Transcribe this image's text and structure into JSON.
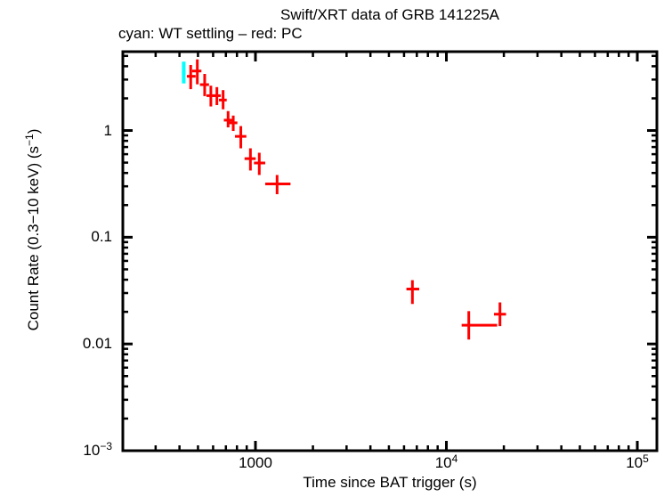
{
  "header": {
    "title": "Swift/XRT data of GRB 141225A",
    "subtitle": "cyan: WT settling – red: PC"
  },
  "chart_data": {
    "type": "scatter",
    "title": "Swift/XRT data of GRB 141225A",
    "xlabel": "Time since BAT trigger (s)",
    "ylabel": {
      "pre": "Count Rate (0.3−10 keV) (s",
      "sup": "−1",
      "post": ")"
    },
    "x_scale": "log",
    "y_scale": "log",
    "xlim": [
      202,
      126600
    ],
    "ylim": [
      0.001,
      5.48
    ],
    "grid": "off",
    "legend": "in-subtitle",
    "x_major_ticks": [
      {
        "value": 1000,
        "base": "1000",
        "sup": ""
      },
      {
        "value": 10000,
        "base": "10",
        "sup": "4"
      },
      {
        "value": 100000,
        "base": "10",
        "sup": "5"
      }
    ],
    "y_major_ticks": [
      {
        "value": 1,
        "base": "1",
        "sup": ""
      },
      {
        "value": 0.1,
        "base": "0.1",
        "sup": ""
      },
      {
        "value": 0.01,
        "base": "0.01",
        "sup": ""
      },
      {
        "value": 0.001,
        "base": "10",
        "sup": "−3"
      }
    ],
    "series": [
      {
        "name": "WT settling",
        "color": "#00ffff",
        "stroke": 4,
        "points": [
          {
            "t": 421,
            "t_lo": 412,
            "t_hi": 430,
            "r": 3.5,
            "r_lo": 2.76,
            "r_hi": 4.42
          }
        ]
      },
      {
        "name": "PC",
        "color": "#ff0000",
        "stroke": 3,
        "points": [
          {
            "t": 458,
            "t_lo": 437,
            "t_hi": 486,
            "r": 3.22,
            "r_lo": 2.44,
            "r_hi": 4.11
          },
          {
            "t": 496,
            "t_lo": 466,
            "t_hi": 521,
            "r": 3.61,
            "r_lo": 2.71,
            "r_hi": 4.64
          },
          {
            "t": 542,
            "t_lo": 512,
            "t_hi": 571,
            "r": 2.69,
            "r_lo": 2.1,
            "r_hi": 3.39
          },
          {
            "t": 584,
            "t_lo": 554,
            "t_hi": 612,
            "r": 2.12,
            "r_lo": 1.68,
            "r_hi": 2.63
          },
          {
            "t": 628,
            "t_lo": 600,
            "t_hi": 658,
            "r": 2.12,
            "r_lo": 1.73,
            "r_hi": 2.55
          },
          {
            "t": 677,
            "t_lo": 644,
            "t_hi": 707,
            "r": 1.93,
            "r_lo": 1.58,
            "r_hi": 2.39
          },
          {
            "t": 719,
            "t_lo": 683,
            "t_hi": 757,
            "r": 1.25,
            "r_lo": 1.07,
            "r_hi": 1.52
          },
          {
            "t": 765,
            "t_lo": 727,
            "t_hi": 804,
            "r": 1.18,
            "r_lo": 0.99,
            "r_hi": 1.38
          },
          {
            "t": 838,
            "t_lo": 781,
            "t_hi": 896,
            "r": 0.881,
            "r_lo": 0.681,
            "r_hi": 1.1
          },
          {
            "t": 941,
            "t_lo": 877,
            "t_hi": 1003,
            "r": 0.545,
            "r_lo": 0.422,
            "r_hi": 0.681
          },
          {
            "t": 1047,
            "t_lo": 982,
            "t_hi": 1125,
            "r": 0.496,
            "r_lo": 0.383,
            "r_hi": 0.619
          },
          {
            "t": 1298,
            "t_lo": 1125,
            "t_hi": 1526,
            "r": 0.316,
            "r_lo": 0.253,
            "r_hi": 0.383
          },
          {
            "t": 6637,
            "t_lo": 6176,
            "t_hi": 7205,
            "r": 0.0327,
            "r_lo": 0.0237,
            "r_hi": 0.0396
          },
          {
            "t": 13100,
            "t_lo": 12020,
            "t_hi": 18440,
            "r": 0.015,
            "r_lo": 0.011,
            "r_hi": 0.0203
          },
          {
            "t": 19080,
            "t_lo": 17750,
            "t_hi": 20530,
            "r": 0.019,
            "r_lo": 0.0147,
            "r_hi": 0.0245
          }
        ]
      }
    ]
  }
}
